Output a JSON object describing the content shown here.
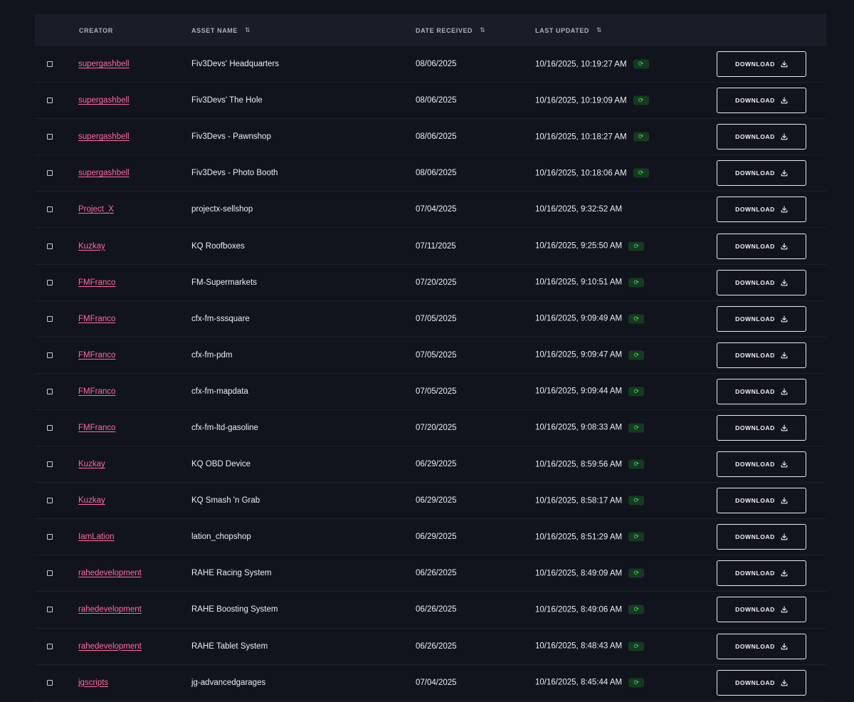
{
  "table": {
    "headers": {
      "creator": "CREATOR",
      "asset_name": "ASSET NAME",
      "date_received": "DATE RECEIVED",
      "last_updated": "LAST UPDATED"
    },
    "sort_icon": "⇅",
    "download_label": "DOWNLOAD",
    "sync_icon": "refresh-icon",
    "colors": {
      "creator_link": "#ff6aa6",
      "sync_badge_bg": "#17391f",
      "sync_badge_fg": "#3ddc6b",
      "page_bg": "#11141c",
      "header_bg": "#1a1d28"
    },
    "rows": [
      {
        "creator": "supergashbell",
        "asset": "Fiv3Devs' Headquarters",
        "date": "08/06/2025",
        "updated": "10/16/2025, 10:19:27 AM",
        "synced": true
      },
      {
        "creator": "supergashbell",
        "asset": "Fiv3Devs' The Hole",
        "date": "08/06/2025",
        "updated": "10/16/2025, 10:19:09 AM",
        "synced": true
      },
      {
        "creator": "supergashbell",
        "asset": "Fiv3Devs - Pawnshop",
        "date": "08/06/2025",
        "updated": "10/16/2025, 10:18:27 AM",
        "synced": true
      },
      {
        "creator": "supergashbell",
        "asset": "Fiv3Devs - Photo Booth",
        "date": "08/06/2025",
        "updated": "10/16/2025, 10:18:06 AM",
        "synced": true
      },
      {
        "creator": "Project_X",
        "asset": "projectx-sellshop",
        "date": "07/04/2025",
        "updated": "10/16/2025, 9:32:52 AM",
        "synced": false
      },
      {
        "creator": "Kuzkay",
        "asset": "KQ Roofboxes",
        "date": "07/11/2025",
        "updated": "10/16/2025, 9:25:50 AM",
        "synced": true
      },
      {
        "creator": "FMFranco",
        "asset": "FM-Supermarkets",
        "date": "07/20/2025",
        "updated": "10/16/2025, 9:10:51 AM",
        "synced": true
      },
      {
        "creator": "FMFranco",
        "asset": "cfx-fm-sssquare",
        "date": "07/05/2025",
        "updated": "10/16/2025, 9:09:49 AM",
        "synced": true
      },
      {
        "creator": "FMFranco",
        "asset": "cfx-fm-pdm",
        "date": "07/05/2025",
        "updated": "10/16/2025, 9:09:47 AM",
        "synced": true
      },
      {
        "creator": "FMFranco",
        "asset": "cfx-fm-mapdata",
        "date": "07/05/2025",
        "updated": "10/16/2025, 9:09:44 AM",
        "synced": true
      },
      {
        "creator": "FMFranco",
        "asset": "cfx-fm-ltd-gasoline",
        "date": "07/20/2025",
        "updated": "10/16/2025, 9:08:33 AM",
        "synced": true
      },
      {
        "creator": "Kuzkay",
        "asset": "KQ OBD Device",
        "date": "06/29/2025",
        "updated": "10/16/2025, 8:59:56 AM",
        "synced": true
      },
      {
        "creator": "Kuzkay",
        "asset": "KQ Smash 'n Grab",
        "date": "06/29/2025",
        "updated": "10/16/2025, 8:58:17 AM",
        "synced": true
      },
      {
        "creator": "IamLation",
        "asset": "lation_chopshop",
        "date": "06/29/2025",
        "updated": "10/16/2025, 8:51:29 AM",
        "synced": true
      },
      {
        "creator": "rahedevelopment",
        "asset": "RAHE Racing System",
        "date": "06/26/2025",
        "updated": "10/16/2025, 8:49:09 AM",
        "synced": true
      },
      {
        "creator": "rahedevelopment",
        "asset": "RAHE Boosting System",
        "date": "06/26/2025",
        "updated": "10/16/2025, 8:49:06 AM",
        "synced": true
      },
      {
        "creator": "rahedevelopment",
        "asset": "RAHE Tablet System",
        "date": "06/26/2025",
        "updated": "10/16/2025, 8:48:43 AM",
        "synced": true
      },
      {
        "creator": "jgscripts",
        "asset": "jg-advancedgarages",
        "date": "07/04/2025",
        "updated": "10/16/2025, 8:45:44 AM",
        "synced": true
      }
    ]
  }
}
